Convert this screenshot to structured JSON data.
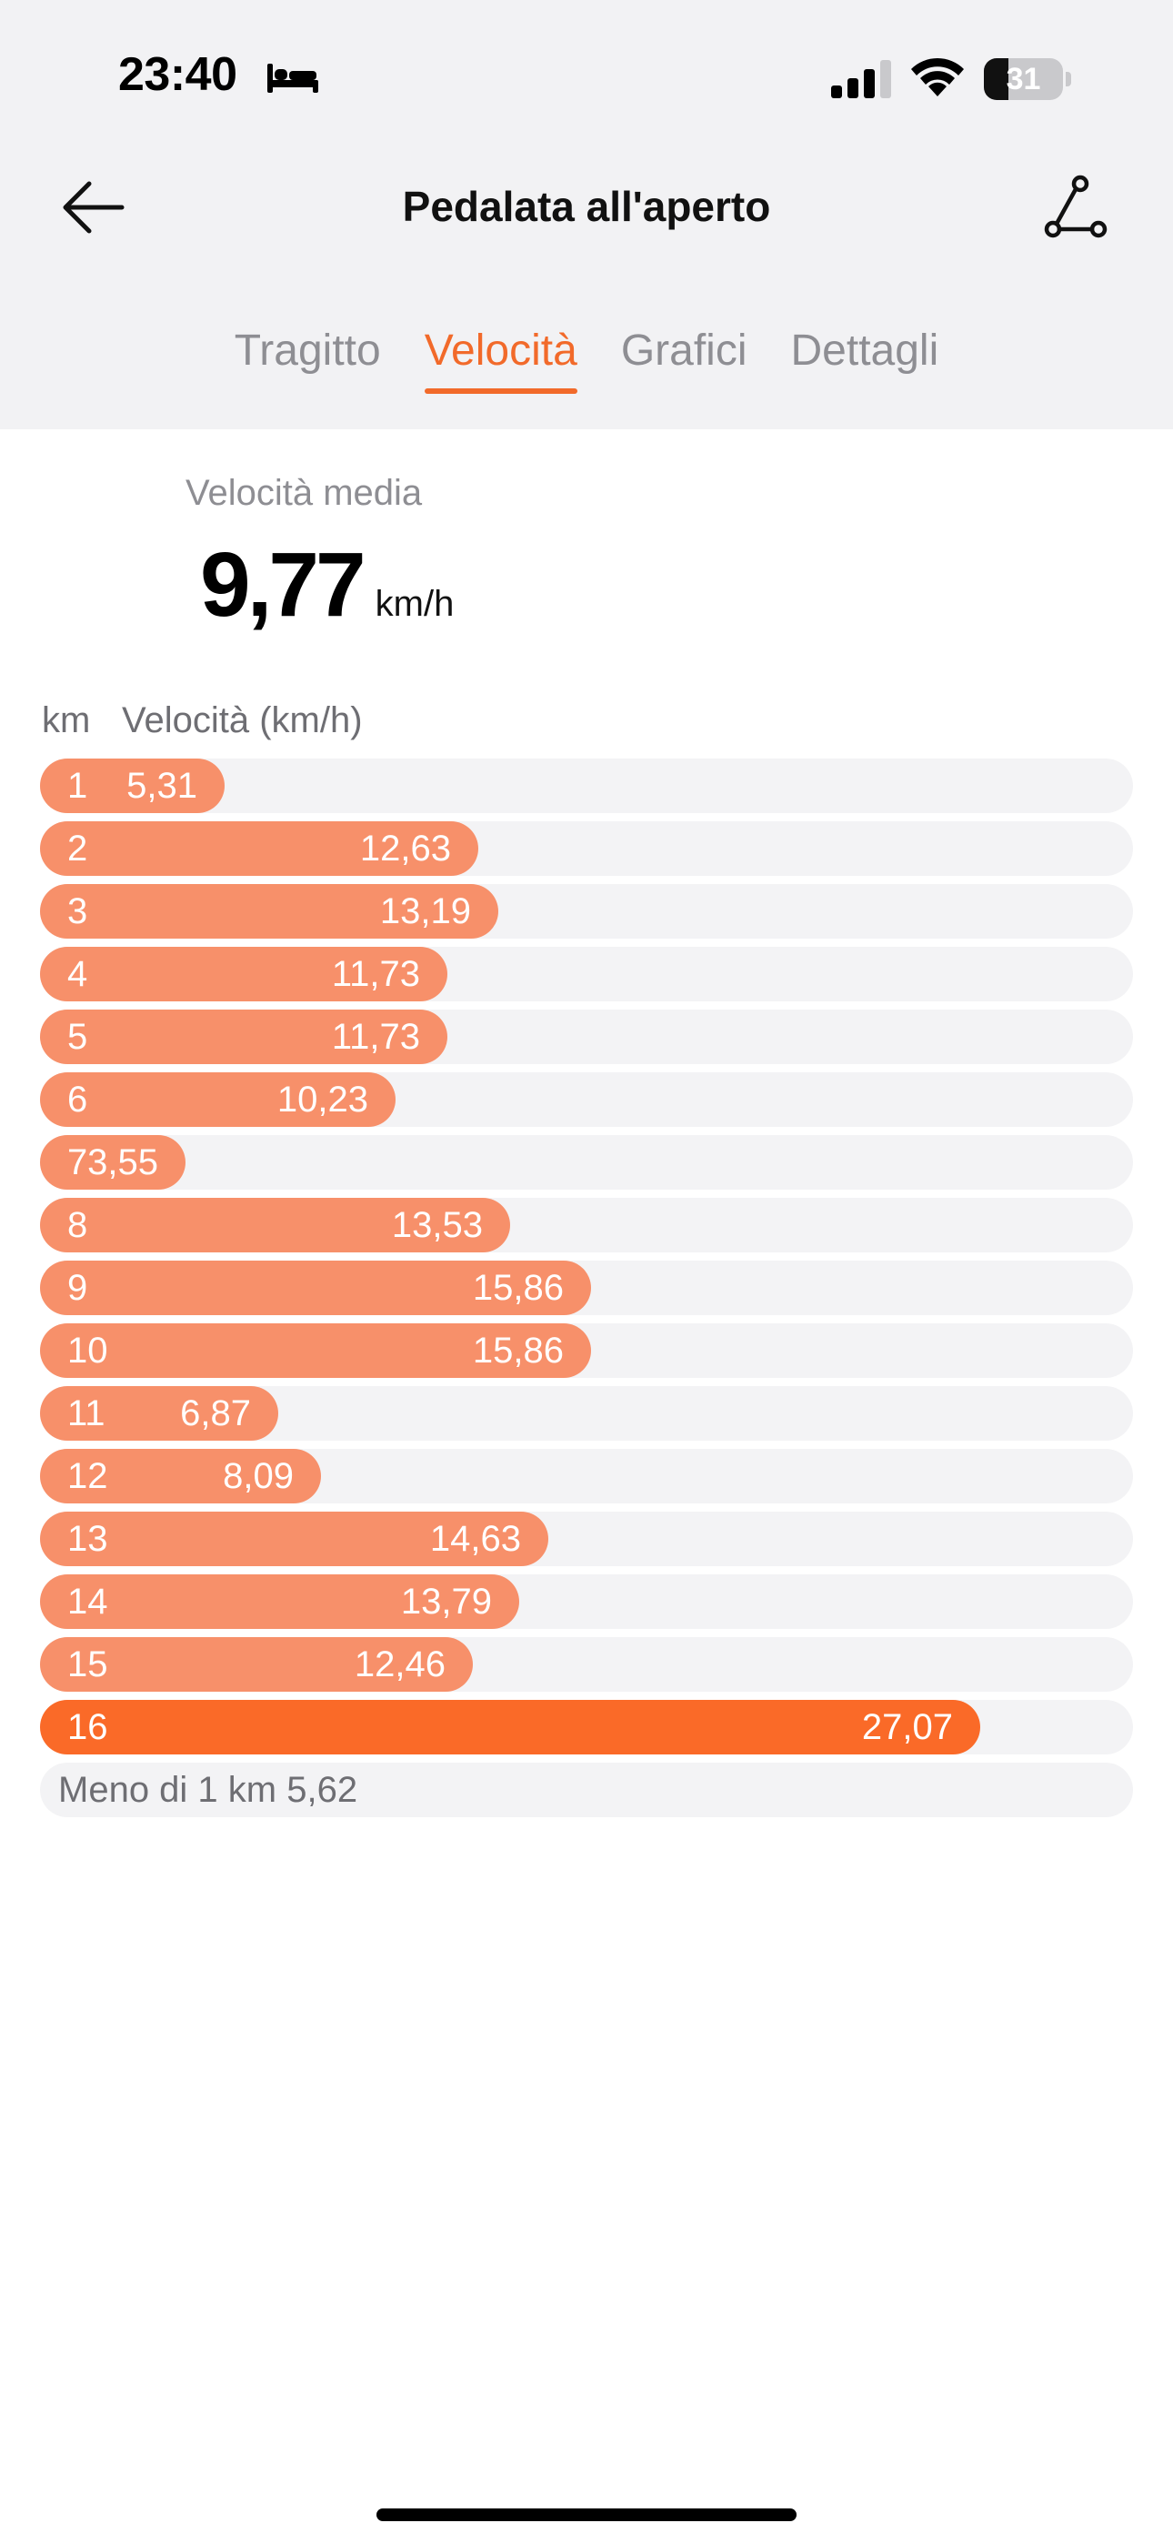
{
  "status_bar": {
    "time": "23:40",
    "battery": "31",
    "battery_level": 0.31,
    "icons": [
      "bed-icon",
      "signal-icon",
      "wifi-icon",
      "battery-icon"
    ]
  },
  "header": {
    "title": "Pedalata all'aperto",
    "back_icon": "arrow-left-icon",
    "route_icon": "route-icon"
  },
  "tabs": [
    {
      "label": "Tragitto",
      "active": false
    },
    {
      "label": "Velocità",
      "active": true
    },
    {
      "label": "Grafici",
      "active": false
    },
    {
      "label": "Dettagli",
      "active": false
    }
  ],
  "average": {
    "label": "Velocità media",
    "value": "9,77",
    "unit": "km/h"
  },
  "table": {
    "col_km": "km",
    "col_speed": "Velocità (km/h)",
    "scale_max": 27.07,
    "rows": [
      {
        "km": "1",
        "speed": 5.31,
        "label": "5,31"
      },
      {
        "km": "2",
        "speed": 12.63,
        "label": "12,63"
      },
      {
        "km": "3",
        "speed": 13.19,
        "label": "13,19"
      },
      {
        "km": "4",
        "speed": 11.73,
        "label": "11,73"
      },
      {
        "km": "5",
        "speed": 11.73,
        "label": "11,73"
      },
      {
        "km": "6",
        "speed": 10.23,
        "label": "10,23"
      },
      {
        "km": "7",
        "speed": 3.55,
        "label": "3,55"
      },
      {
        "km": "8",
        "speed": 13.53,
        "label": "13,53"
      },
      {
        "km": "9",
        "speed": 15.86,
        "label": "15,86"
      },
      {
        "km": "10",
        "speed": 15.86,
        "label": "15,86"
      },
      {
        "km": "11",
        "speed": 6.87,
        "label": "6,87"
      },
      {
        "km": "12",
        "speed": 8.09,
        "label": "8,09"
      },
      {
        "km": "13",
        "speed": 14.63,
        "label": "14,63"
      },
      {
        "km": "14",
        "speed": 13.79,
        "label": "13,79"
      },
      {
        "km": "15",
        "speed": 12.46,
        "label": "12,46"
      },
      {
        "km": "16",
        "speed": 27.07,
        "label": "27,07",
        "highlight": true
      }
    ],
    "less_than_km": "Meno di 1 km 5,62"
  },
  "colors": {
    "accent": "#f26a2a",
    "bar": "#f7906a",
    "bar_max": "#fa6a28",
    "track": "#f3f3f5"
  }
}
